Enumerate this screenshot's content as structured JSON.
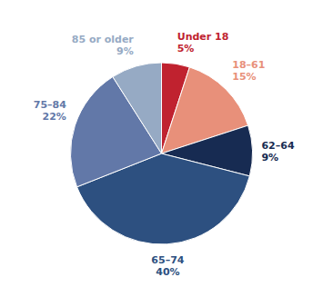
{
  "chart_data": {
    "type": "pie",
    "categories": [
      "Under 18",
      "18–61",
      "62–64",
      "65–74",
      "75–84",
      "85 or older"
    ],
    "values": [
      5,
      15,
      9,
      40,
      22,
      9
    ],
    "value_labels": [
      "5%",
      "15%",
      "9%",
      "40%",
      "22%",
      "9%"
    ],
    "colors": [
      "#c0222f",
      "#e8907a",
      "#172b52",
      "#2d5080",
      "#6278a8",
      "#96aac4"
    ],
    "data_labels": true
  }
}
